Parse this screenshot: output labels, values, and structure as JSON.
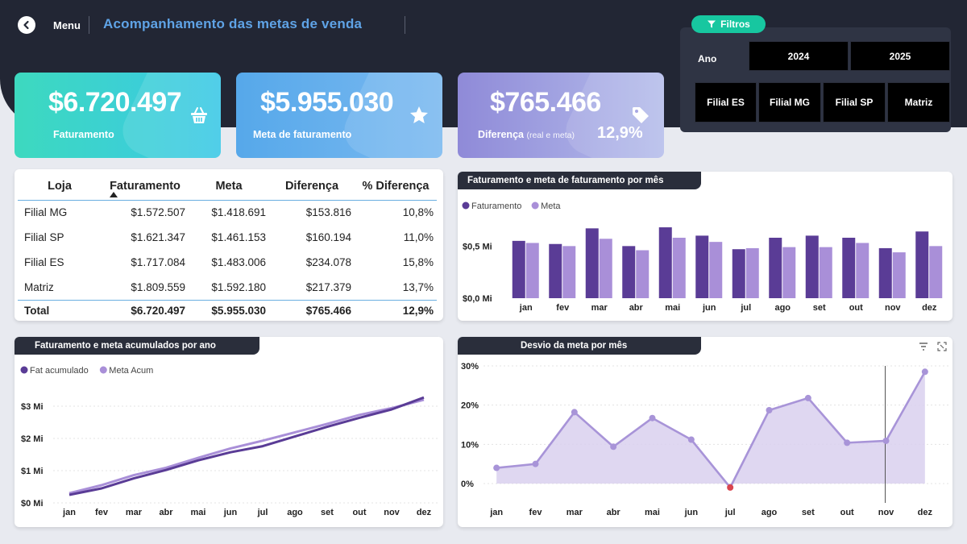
{
  "header": {
    "menu_label": "Menu",
    "title": "Acompanhamento das metas de venda"
  },
  "filters": {
    "pill_label": "Filtros",
    "ano_label": "Ano",
    "years": [
      "2024",
      "2025"
    ],
    "branches": [
      "Filial ES",
      "Filial MG",
      "Filial SP",
      "Matriz"
    ]
  },
  "kpis": {
    "faturamento": {
      "value": "$6.720.497",
      "label": "Faturamento"
    },
    "meta": {
      "value": "$5.955.030",
      "label": "Meta de faturamento"
    },
    "diferenca": {
      "value": "$765.466",
      "label": "Diferença",
      "sublabel": "(real e meta)",
      "pct": "12,9%"
    }
  },
  "table": {
    "headers": [
      "Loja",
      "Faturamento",
      "Meta",
      "Diferença",
      "% Diferença"
    ],
    "rows": [
      [
        "Filial MG",
        "$1.572.507",
        "$1.418.691",
        "$153.816",
        "10,8%"
      ],
      [
        "Filial SP",
        "$1.621.347",
        "$1.461.153",
        "$160.194",
        "11,0%"
      ],
      [
        "Filial ES",
        "$1.717.084",
        "$1.483.006",
        "$234.078",
        "15,8%"
      ],
      [
        "Matriz",
        "$1.809.559",
        "$1.592.180",
        "$217.379",
        "13,7%"
      ]
    ],
    "total": [
      "Total",
      "$6.720.497",
      "$5.955.030",
      "$765.466",
      "12,9%"
    ]
  },
  "colors": {
    "fat": "#5a3c96",
    "meta": "#a98fd8",
    "accent": "#17c7a0",
    "negative": "#d9454f"
  },
  "chart_data": [
    {
      "type": "bar",
      "title": "Faturamento e meta de faturamento por mês",
      "categories": [
        "jan",
        "fev",
        "mar",
        "abr",
        "mai",
        "jun",
        "jul",
        "ago",
        "set",
        "out",
        "nov",
        "dez"
      ],
      "series": [
        {
          "name": "Faturamento",
          "values": [
            0.55,
            0.52,
            0.67,
            0.5,
            0.68,
            0.6,
            0.47,
            0.58,
            0.6,
            0.58,
            0.48,
            0.64
          ]
        },
        {
          "name": "Meta",
          "values": [
            0.53,
            0.5,
            0.57,
            0.46,
            0.58,
            0.54,
            0.48,
            0.49,
            0.49,
            0.53,
            0.44,
            0.5
          ]
        }
      ],
      "yticks": [
        "$0,0 Mi",
        "$0,5 Mi"
      ],
      "ylim": [
        0,
        0.75
      ],
      "legend": "top-left",
      "grid": false
    },
    {
      "type": "line",
      "title": "Faturamento e meta acumulados por ano",
      "categories": [
        "jan",
        "fev",
        "mar",
        "abr",
        "mai",
        "jun",
        "jul",
        "ago",
        "set",
        "out",
        "nov",
        "dez"
      ],
      "series": [
        {
          "name": "Fat acumulado",
          "values": [
            0.25,
            0.45,
            0.76,
            1.02,
            1.32,
            1.57,
            1.76,
            2.06,
            2.36,
            2.64,
            2.9,
            3.27
          ]
        },
        {
          "name": "Meta Acum",
          "values": [
            0.3,
            0.55,
            0.86,
            1.09,
            1.4,
            1.69,
            1.93,
            2.19,
            2.45,
            2.73,
            2.94,
            3.2
          ]
        }
      ],
      "yticks": [
        "$0 Mi",
        "$1 Mi",
        "$2 Mi",
        "$3 Mi"
      ],
      "ylim": [
        0,
        3.4
      ],
      "legend": "top-left",
      "grid": true
    },
    {
      "type": "area",
      "title": "Desvio da meta por mês",
      "categories": [
        "jan",
        "fev",
        "mar",
        "abr",
        "mai",
        "jun",
        "jul",
        "ago",
        "set",
        "out",
        "nov",
        "dez"
      ],
      "series": [
        {
          "name": "",
          "values": [
            4.0,
            5.0,
            18.2,
            9.4,
            16.7,
            11.2,
            -1.0,
            18.7,
            21.8,
            10.4,
            10.9,
            28.5
          ]
        }
      ],
      "yticks": [
        "0%",
        "10%",
        "20%",
        "30%"
      ],
      "ylim": [
        -2,
        30
      ],
      "grid": true
    }
  ]
}
